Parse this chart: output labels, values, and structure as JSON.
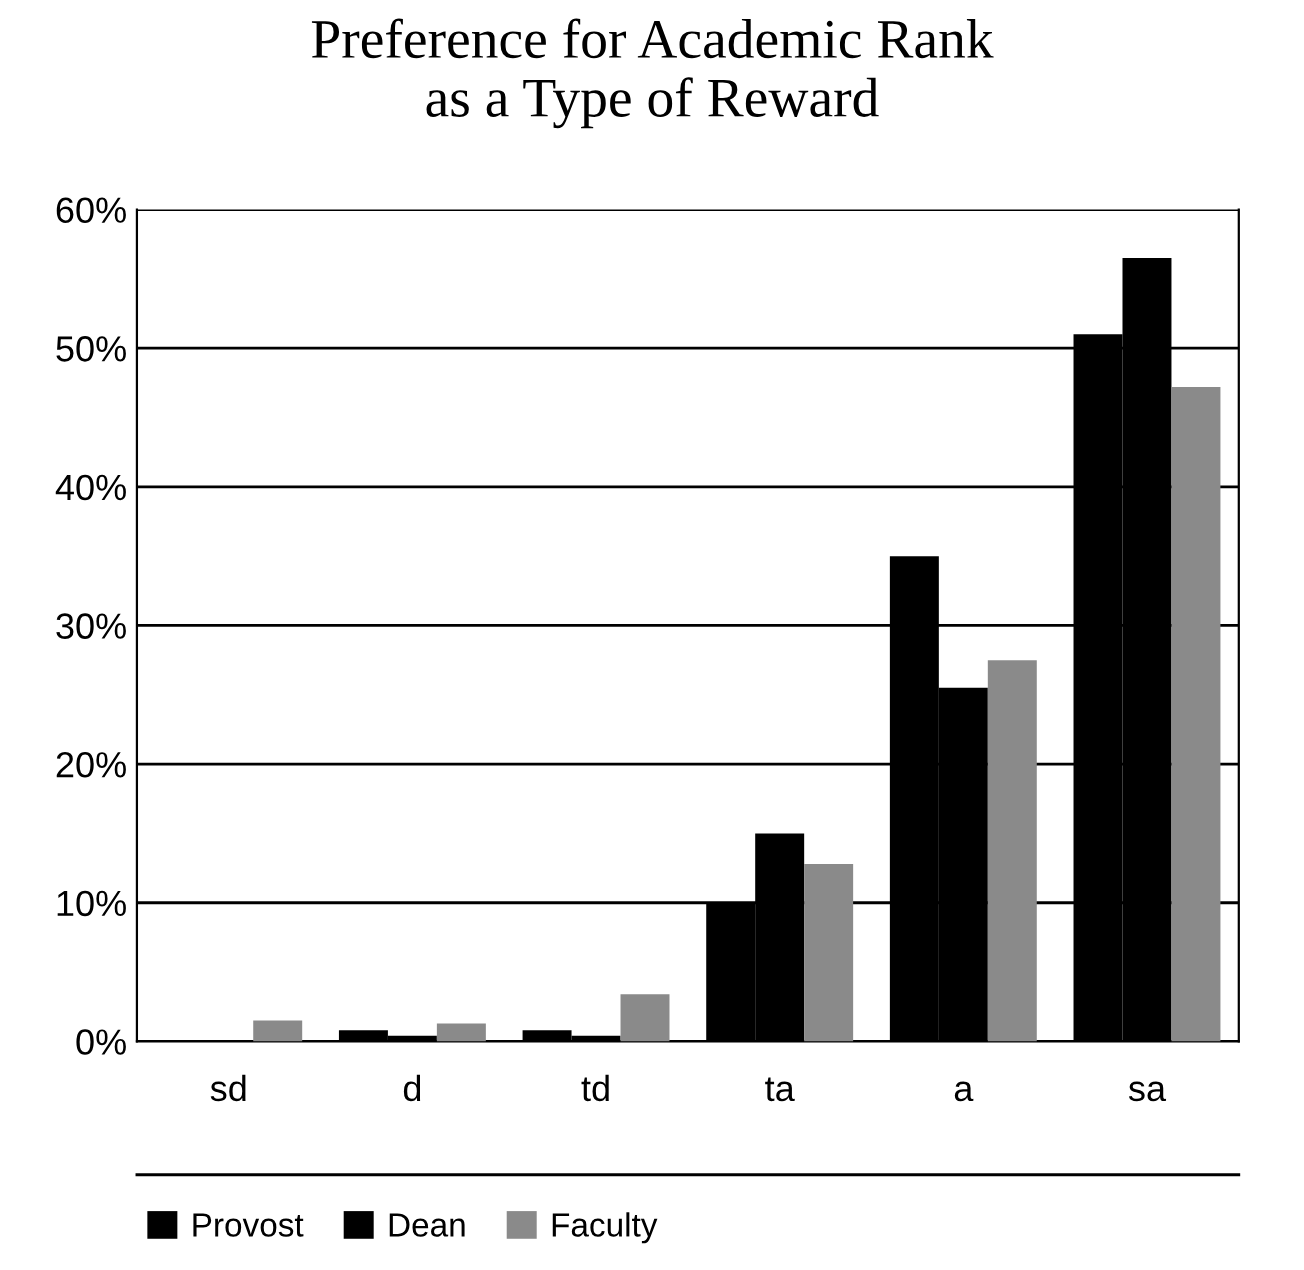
{
  "chart_data": {
    "type": "bar",
    "title": "Preference for Academic Rank\nas a Type of Reward",
    "categories": [
      "sd",
      "d",
      "td",
      "ta",
      "a",
      "sa"
    ],
    "series": [
      {
        "name": "Provost",
        "color": "#000000",
        "values": [
          0,
          0.8,
          0.8,
          10,
          35,
          51
        ]
      },
      {
        "name": "Dean",
        "color": "#000000",
        "values": [
          0,
          0.4,
          0.4,
          15,
          25.5,
          56.5
        ]
      },
      {
        "name": "Faculty",
        "color": "#8a8a8a",
        "values": [
          1.5,
          1.3,
          3.4,
          12.8,
          27.5,
          47.2
        ]
      }
    ],
    "ylim": [
      0,
      60
    ],
    "yticks": [
      {
        "value": 0,
        "label": "0%"
      },
      {
        "value": 10,
        "label": "10%"
      },
      {
        "value": 20,
        "label": "20%"
      },
      {
        "value": 30,
        "label": "30%"
      },
      {
        "value": 40,
        "label": "40%"
      },
      {
        "value": 50,
        "label": "50%"
      },
      {
        "value": 60,
        "label": "60%"
      }
    ],
    "grid": "y",
    "legend": "bottom"
  }
}
